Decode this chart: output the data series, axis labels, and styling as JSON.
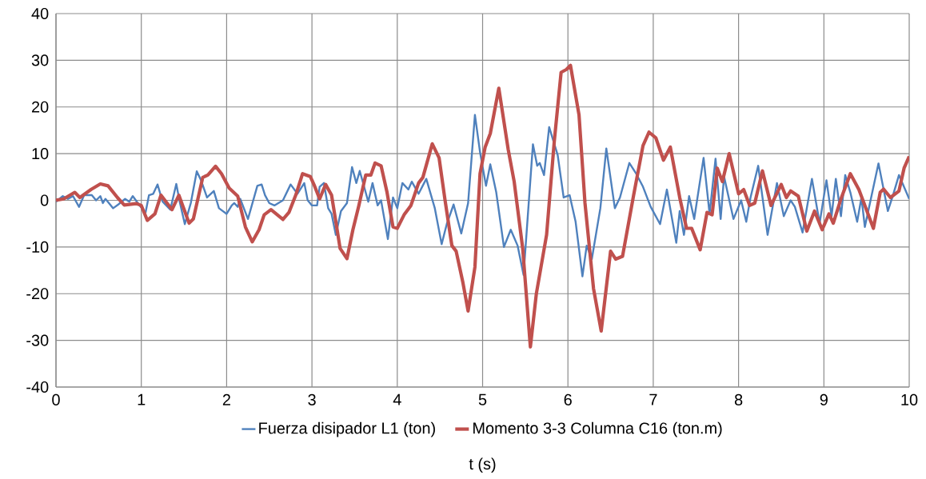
{
  "chart_data": {
    "type": "line",
    "xlabel": "t (s)",
    "xlim": [
      0,
      10
    ],
    "xticks": [
      0,
      1,
      2,
      3,
      4,
      5,
      6,
      7,
      8,
      9,
      10
    ],
    "ylim": [
      -40,
      40
    ],
    "yticks": [
      -40,
      -30,
      -20,
      -10,
      0,
      10,
      20,
      30,
      40
    ],
    "grid": true,
    "legend": "bottom",
    "marker": "none",
    "line_style": "solid",
    "series": [
      {
        "name": "Fuerza disipador L1 (ton)",
        "color": "#4f81bd",
        "x": [
          0,
          0.08,
          0.14,
          0.2,
          0.27,
          0.33,
          0.42,
          0.47,
          0.52,
          0.55,
          0.58,
          0.67,
          0.73,
          0.81,
          0.86,
          0.9,
          0.98,
          1.05,
          1.09,
          1.14,
          1.19,
          1.25,
          1.34,
          1.41,
          1.45,
          1.51,
          1.58,
          1.65,
          1.7,
          1.77,
          1.85,
          1.91,
          2.0,
          2.06,
          2.09,
          2.13,
          2.16,
          2.25,
          2.36,
          2.41,
          2.45,
          2.5,
          2.56,
          2.66,
          2.75,
          2.83,
          2.91,
          2.95,
          3.0,
          3.06,
          3.09,
          3.14,
          3.19,
          3.23,
          3.28,
          3.34,
          3.41,
          3.47,
          3.52,
          3.56,
          3.66,
          3.71,
          3.77,
          3.81,
          3.89,
          3.95,
          4.0,
          4.06,
          4.13,
          4.17,
          4.25,
          4.34,
          4.44,
          4.52,
          4.58,
          4.66,
          4.75,
          4.83,
          4.91,
          4.97,
          5.04,
          5.09,
          5.16,
          5.25,
          5.33,
          5.41,
          5.48,
          5.59,
          5.64,
          5.67,
          5.72,
          5.78,
          5.88,
          5.95,
          6.02,
          6.09,
          6.17,
          6.22,
          6.28,
          6.38,
          6.45,
          6.55,
          6.61,
          6.72,
          6.8,
          6.88,
          6.97,
          7.08,
          7.16,
          7.27,
          7.31,
          7.36,
          7.42,
          7.48,
          7.59,
          7.66,
          7.73,
          7.79,
          7.83,
          7.94,
          8.03,
          8.09,
          8.14,
          8.23,
          8.34,
          8.45,
          8.53,
          8.61,
          8.66,
          8.75,
          8.86,
          8.95,
          9.03,
          9.09,
          9.14,
          9.2,
          9.25,
          9.31,
          9.39,
          9.44,
          9.48,
          9.56,
          9.64,
          9.75,
          9.81,
          9.88,
          10
        ],
        "values": [
          -0.3,
          0.9,
          0.3,
          0.9,
          -1.4,
          1.1,
          1.1,
          0,
          0.9,
          -0.6,
          0.3,
          -1.7,
          -0.9,
          0.3,
          -0.3,
          0.9,
          -1.1,
          -2.6,
          1.1,
          1.4,
          3.4,
          -0.3,
          -2,
          3.5,
          -0.3,
          -5.1,
          -0.6,
          6.2,
          4.3,
          0.6,
          2,
          -1.7,
          -2.9,
          -1.1,
          -0.6,
          -1.4,
          0.3,
          -4,
          3.1,
          3.4,
          1.1,
          -0.6,
          -1.1,
          0,
          3.4,
          1.4,
          3.7,
          0,
          -1.1,
          -1.1,
          2.9,
          3.7,
          -1.7,
          -2.9,
          -7.4,
          -2.3,
          -0.6,
          7.1,
          3.7,
          6.3,
          -0.3,
          3.7,
          -1.1,
          0,
          -8.3,
          0.6,
          -1.7,
          3.7,
          2.3,
          4,
          1.4,
          4.6,
          -1.7,
          -9.4,
          -5.1,
          -0.9,
          -7.1,
          -0.6,
          18.3,
          10.3,
          3.1,
          7.7,
          1.7,
          -10,
          -6.3,
          -9.7,
          -16,
          12,
          7.4,
          8,
          5.4,
          15.7,
          9.7,
          0.6,
          1.1,
          -4.6,
          -16.3,
          -9.7,
          -12.6,
          -1.7,
          11.1,
          -1.7,
          0.6,
          8,
          5.7,
          2.9,
          -1.4,
          -5.1,
          2.3,
          -9.1,
          -2.3,
          -7.4,
          0.9,
          -4,
          9.1,
          -2.9,
          8.9,
          -4,
          5.1,
          -4,
          0,
          -4.6,
          0.6,
          7.4,
          -7.4,
          3.7,
          -3.4,
          0,
          -1.4,
          -6.9,
          4.6,
          -4.9,
          4.3,
          -3.4,
          4.6,
          -3.4,
          5.4,
          1.7,
          -4.6,
          0.6,
          -5.7,
          1.1,
          7.9,
          -2.3,
          1.1,
          5.4,
          0.3
        ]
      },
      {
        "name": "Momento 3-3 Columna C16 (ton.m)",
        "color": "#c0504d",
        "x": [
          0,
          0.09,
          0.22,
          0.28,
          0.41,
          0.52,
          0.61,
          0.72,
          0.8,
          0.94,
          1.0,
          1.07,
          1.16,
          1.23,
          1.36,
          1.44,
          1.56,
          1.61,
          1.72,
          1.78,
          1.87,
          1.94,
          2.03,
          2.13,
          2.22,
          2.3,
          2.38,
          2.44,
          2.52,
          2.66,
          2.73,
          2.81,
          2.89,
          2.98,
          3.03,
          3.09,
          3.16,
          3.23,
          3.33,
          3.41,
          3.48,
          3.55,
          3.63,
          3.69,
          3.74,
          3.81,
          3.88,
          3.95,
          4.0,
          4.08,
          4.16,
          4.25,
          4.3,
          4.41,
          4.49,
          4.56,
          4.64,
          4.69,
          4.77,
          4.83,
          4.91,
          4.97,
          5.03,
          5.09,
          5.19,
          5.3,
          5.37,
          5.47,
          5.56,
          5.63,
          5.75,
          5.84,
          5.92,
          5.98,
          6.03,
          6.13,
          6.2,
          6.3,
          6.39,
          6.5,
          6.56,
          6.64,
          6.77,
          6.88,
          6.95,
          7.03,
          7.12,
          7.2,
          7.31,
          7.39,
          7.45,
          7.55,
          7.63,
          7.69,
          7.75,
          7.81,
          7.89,
          8.0,
          8.06,
          8.13,
          8.19,
          8.28,
          8.38,
          8.5,
          8.56,
          8.61,
          8.7,
          8.8,
          8.89,
          8.98,
          9.06,
          9.11,
          9.2,
          9.31,
          9.41,
          9.48,
          9.58,
          9.66,
          9.7,
          9.78,
          9.88,
          9.94,
          10
        ],
        "values": [
          0,
          0.3,
          1.7,
          0.6,
          2.3,
          3.5,
          3.1,
          0.6,
          -1,
          -0.7,
          -1.1,
          -4.3,
          -2.9,
          1.1,
          -2,
          1.1,
          -4.9,
          -4,
          4.9,
          5.4,
          7.3,
          5.7,
          2.6,
          0.9,
          -5.7,
          -8.9,
          -6.3,
          -3.1,
          -2,
          -4.1,
          -2.6,
          1.1,
          5.7,
          5.1,
          3.1,
          0.3,
          3.4,
          1.1,
          -10.3,
          -12.5,
          -6.3,
          -1.1,
          5.4,
          5.4,
          8,
          7.4,
          1.7,
          -5.7,
          -6,
          -3.1,
          -1.1,
          3.7,
          4.9,
          12.1,
          9.1,
          0,
          -9.7,
          -10.9,
          -17.7,
          -23.7,
          -14.3,
          5.7,
          11.4,
          14.3,
          24,
          10.9,
          4,
          -10.3,
          -31.4,
          -20,
          -7.4,
          12.6,
          27.4,
          28,
          28.9,
          18.3,
          -0.6,
          -18.9,
          -28,
          -10.9,
          -12.6,
          -12,
          1.1,
          11.7,
          14.6,
          13.4,
          8.6,
          11.4,
          0.6,
          -6,
          -6,
          -10.6,
          -2.6,
          -3.1,
          6.9,
          4,
          10,
          1.4,
          2.3,
          -1.1,
          -0.6,
          6.3,
          -1.1,
          3.4,
          0.6,
          2,
          0.9,
          -6.6,
          -2.3,
          -6.3,
          -2.9,
          -4.9,
          0.3,
          5.7,
          2.3,
          -1.1,
          -6,
          1.7,
          2.4,
          0.6,
          2,
          6.9,
          9.4
        ]
      }
    ]
  }
}
